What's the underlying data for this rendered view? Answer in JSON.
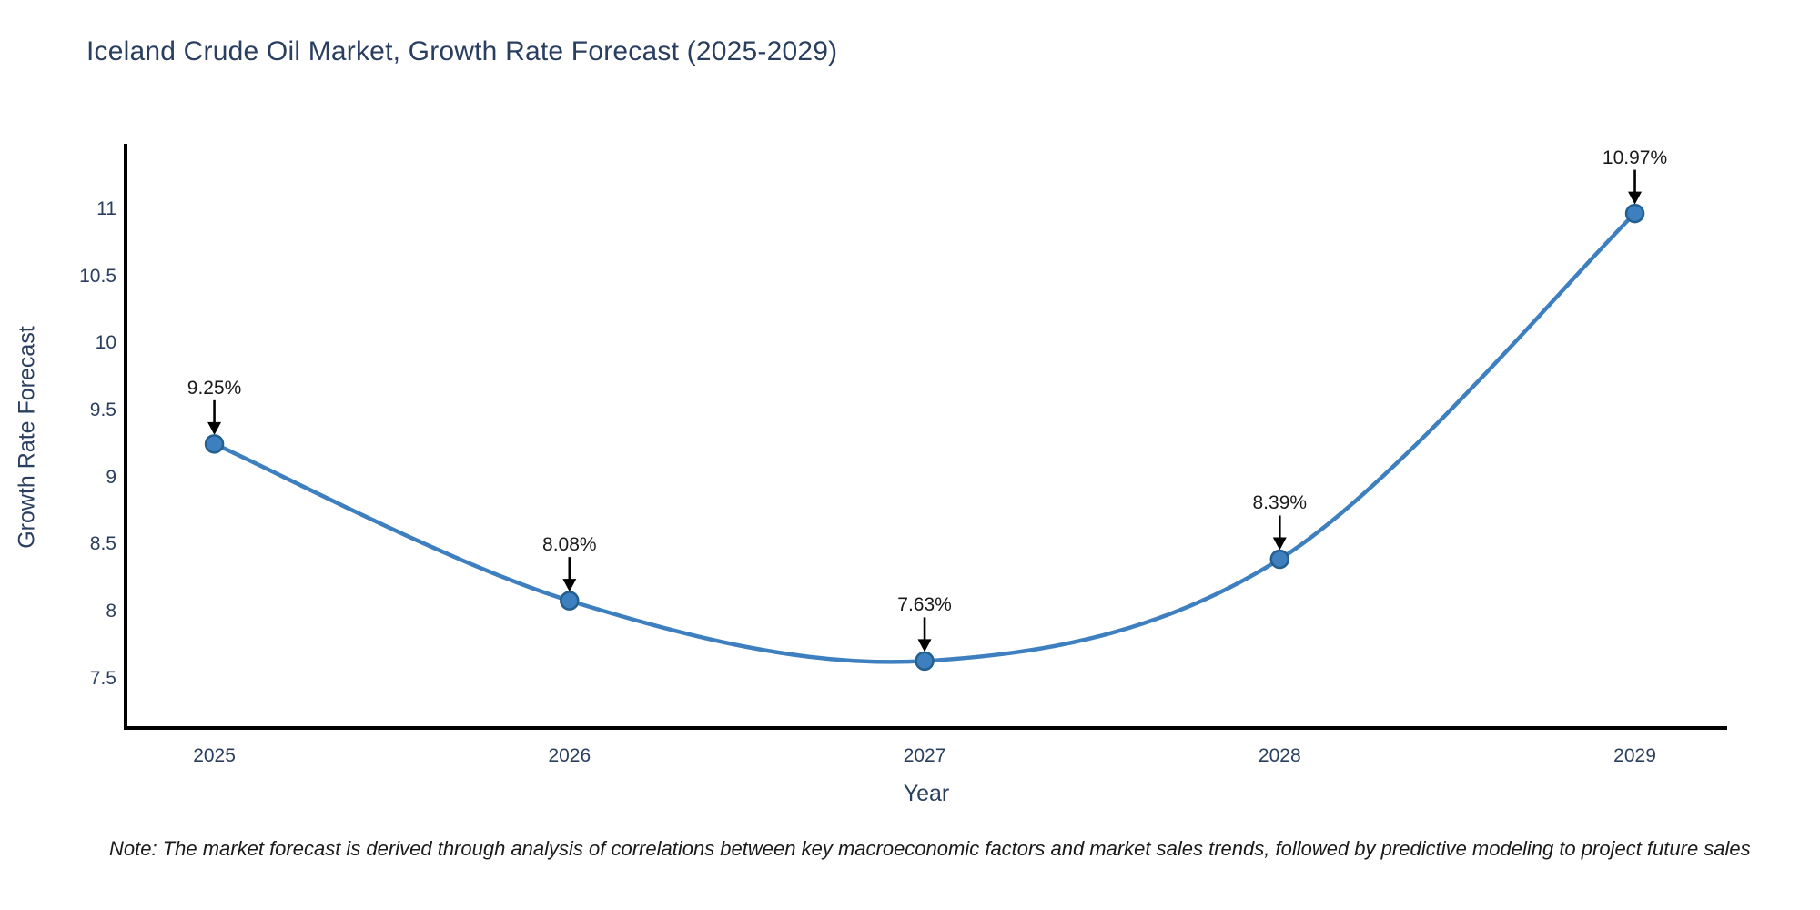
{
  "title": "Iceland Crude Oil Market, Growth Rate Forecast (2025-2029)",
  "axes": {
    "xlabel": "Year",
    "ylabel": "Growth Rate Forecast"
  },
  "footnote": "Note: The market forecast is derived through analysis of correlations between key macroeconomic factors and market sales trends, followed by predictive modeling to project future sales",
  "chart_data": {
    "type": "line",
    "line_shape": "spline",
    "title": "Iceland Crude Oil Market, Growth Rate Forecast (2025-2029)",
    "xlabel": "Year",
    "ylabel": "Growth Rate Forecast",
    "x": [
      2025,
      2026,
      2027,
      2028,
      2029
    ],
    "series": [
      {
        "name": "Growth Rate Forecast",
        "values": [
          9.25,
          8.08,
          7.63,
          8.39,
          10.97
        ]
      }
    ],
    "point_labels": [
      "9.25%",
      "8.08%",
      "7.63%",
      "8.39%",
      "10.97%"
    ],
    "xticks": [
      "2025",
      "2026",
      "2027",
      "2028",
      "2029"
    ],
    "yticks": [
      7.5,
      8,
      8.5,
      9,
      9.5,
      10,
      10.5,
      11
    ],
    "xlim": [
      2024.75,
      2029.26
    ],
    "ylim": [
      7.13,
      11.49
    ],
    "grid": false,
    "legend": "none",
    "annotations_have_arrows": true,
    "colors": {
      "line": "#3d7fbf",
      "marker": "#3d7fbf",
      "marker_border": "#24608f",
      "annotation_arrow": "#000000",
      "annotation_text": "#1a1a1a",
      "axis_line": "#000000",
      "tick_text": "#2a3f5f",
      "title_text": "#2a3f5f",
      "background": "#ffffff"
    }
  }
}
